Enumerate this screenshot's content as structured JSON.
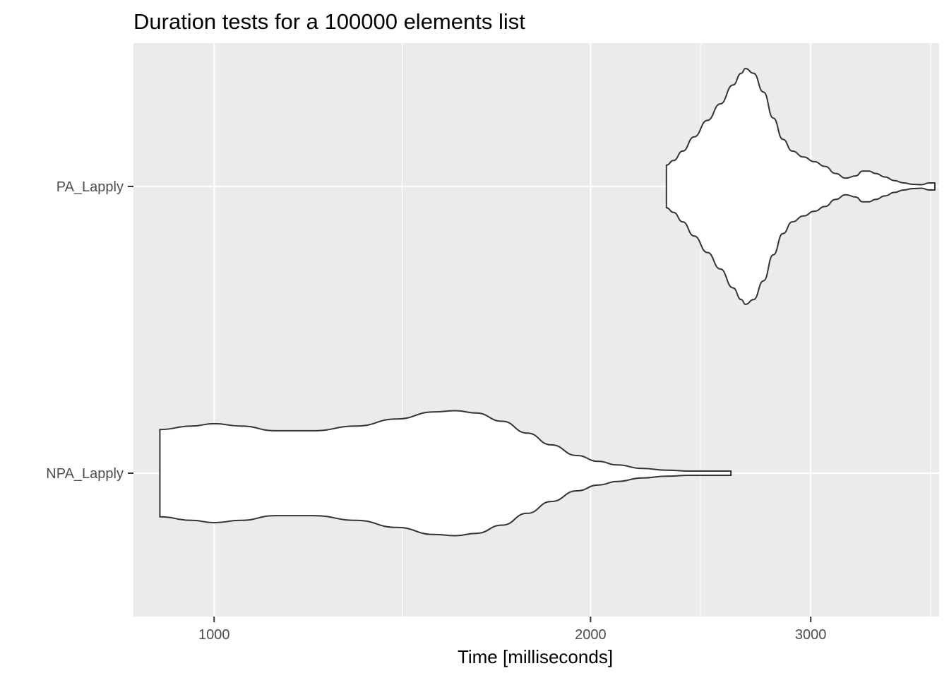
{
  "chart_data": {
    "type": "violin",
    "title": "Duration tests for a  100000  elements  list",
    "xlabel": "Time [milliseconds]",
    "ylabel": "",
    "x_scale": "log10",
    "xlim": [
      862,
      3800
    ],
    "x_ticks": [
      1000,
      2000,
      3000
    ],
    "x_tick_labels": [
      "1000",
      "2000",
      "3000"
    ],
    "x_minor_ticks": [
      1414,
      2449,
      3742
    ],
    "categories": [
      "PA_Lapply",
      "NPA_Lapply"
    ],
    "background": "#ebebeb",
    "grid": true,
    "series": [
      {
        "category": "PA_Lapply",
        "profile": [
          [
            2300,
            0.18
          ],
          [
            2330,
            0.22
          ],
          [
            2370,
            0.3
          ],
          [
            2420,
            0.42
          ],
          [
            2480,
            0.56
          ],
          [
            2540,
            0.7
          ],
          [
            2600,
            0.86
          ],
          [
            2640,
            0.96
          ],
          [
            2660,
            1.0
          ],
          [
            2700,
            0.96
          ],
          [
            2750,
            0.8
          ],
          [
            2800,
            0.58
          ],
          [
            2850,
            0.4
          ],
          [
            2900,
            0.3
          ],
          [
            2960,
            0.25
          ],
          [
            3020,
            0.21
          ],
          [
            3080,
            0.17
          ],
          [
            3140,
            0.11
          ],
          [
            3200,
            0.07
          ],
          [
            3260,
            0.09
          ],
          [
            3300,
            0.13
          ],
          [
            3340,
            0.13
          ],
          [
            3380,
            0.11
          ],
          [
            3440,
            0.08
          ],
          [
            3500,
            0.05
          ],
          [
            3560,
            0.03
          ],
          [
            3620,
            0.018
          ],
          [
            3680,
            0.015
          ],
          [
            3730,
            0.03
          ],
          [
            3770,
            0.03
          ]
        ]
      },
      {
        "category": "NPA_Lapply",
        "profile": [
          [
            905,
            0.37
          ],
          [
            960,
            0.4
          ],
          [
            1000,
            0.42
          ],
          [
            1050,
            0.4
          ],
          [
            1120,
            0.36
          ],
          [
            1200,
            0.36
          ],
          [
            1300,
            0.4
          ],
          [
            1400,
            0.46
          ],
          [
            1500,
            0.52
          ],
          [
            1560,
            0.53
          ],
          [
            1620,
            0.51
          ],
          [
            1700,
            0.44
          ],
          [
            1780,
            0.34
          ],
          [
            1860,
            0.24
          ],
          [
            1950,
            0.15
          ],
          [
            2030,
            0.1
          ],
          [
            2100,
            0.07
          ],
          [
            2200,
            0.04
          ],
          [
            2300,
            0.025
          ],
          [
            2400,
            0.018
          ],
          [
            2500,
            0.018
          ],
          [
            2560,
            0.018
          ],
          [
            2590,
            0.018
          ]
        ]
      }
    ]
  }
}
